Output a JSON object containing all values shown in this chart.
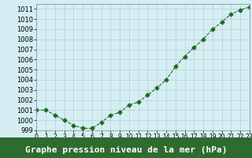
{
  "x": [
    0,
    1,
    2,
    3,
    4,
    5,
    6,
    7,
    8,
    9,
    10,
    11,
    12,
    13,
    14,
    15,
    16,
    17,
    18,
    19,
    20,
    21,
    22,
    23
  ],
  "y": [
    1001.0,
    1001.0,
    1000.5,
    1000.0,
    999.5,
    999.2,
    999.2,
    999.8,
    1000.5,
    1000.8,
    1001.5,
    1001.8,
    1002.5,
    1003.2,
    1004.0,
    1005.3,
    1006.3,
    1007.2,
    1008.0,
    1009.0,
    1009.7,
    1010.5,
    1010.9,
    1011.2
  ],
  "line_color": "#1e6b1e",
  "marker": "D",
  "marker_size": 2.5,
  "line_width": 0.8,
  "background_color": "#d4eef4",
  "grid_color": "#b0c8c8",
  "xlabel": "Graphe pression niveau de la mer (hPa)",
  "xlabel_fontsize": 8,
  "ylabel_fontsize": 6,
  "tick_fontsize": 6,
  "ylim": [
    999,
    1011.5
  ],
  "xlim": [
    0,
    23
  ],
  "yticks": [
    999,
    1000,
    1001,
    1002,
    1003,
    1004,
    1005,
    1006,
    1007,
    1008,
    1009,
    1010,
    1011
  ],
  "xticks": [
    0,
    1,
    2,
    3,
    4,
    5,
    6,
    7,
    8,
    9,
    10,
    11,
    12,
    13,
    14,
    15,
    16,
    17,
    18,
    19,
    20,
    21,
    22,
    23
  ],
  "fig_bg_color": "#d4eef4",
  "spine_color": "#888888",
  "bottom_bar_color": "#2e6b2e",
  "bottom_bar_height": 0.13
}
